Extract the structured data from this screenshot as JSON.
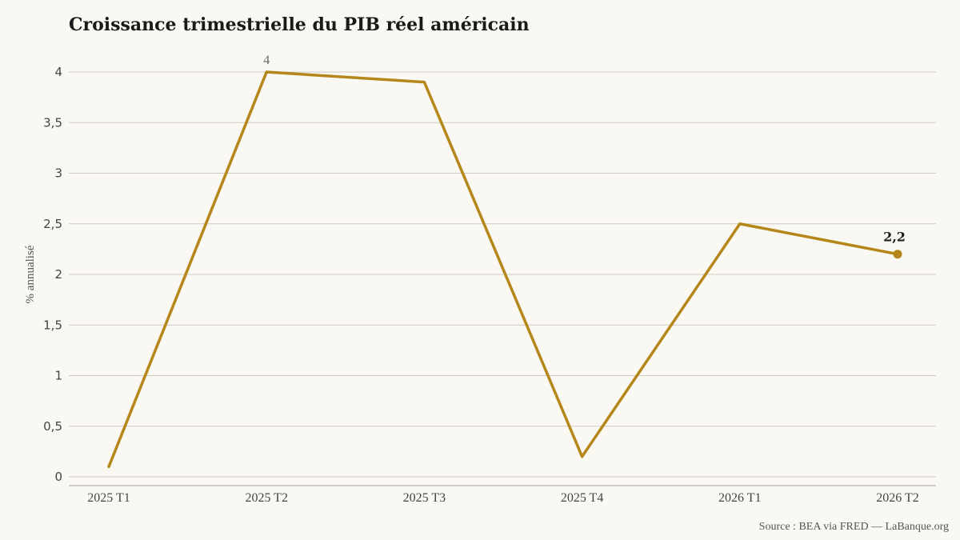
{
  "title": "Croissance trimestrielle du PIB réel américain",
  "source": "Source : BEA via FRED — LaBanque.org",
  "colors": {
    "line": "#b5861a",
    "grid": "#cfcbc2",
    "axis": "#b9b5ac",
    "background": "#faf8f2"
  },
  "chart_data": {
    "type": "line",
    "categories": [
      "2025 T1",
      "2025 T2",
      "2025 T3",
      "2025 T4",
      "2026 T1",
      "2026 T2"
    ],
    "values": [
      0.1,
      4.0,
      3.9,
      0.2,
      2.5,
      2.2
    ],
    "ylabel": "% annualisé",
    "xlabel": "",
    "ylim": [
      0,
      4
    ],
    "yticks": [
      0,
      0.5,
      1,
      1.5,
      2,
      2.5,
      3,
      3.5,
      4
    ],
    "ytick_labels": [
      "0",
      "0,5",
      "1",
      "1,5",
      "2",
      "2,5",
      "3",
      "3,5",
      "4"
    ],
    "grid": true,
    "legend": "none",
    "annotations": [
      {
        "category": "2025 T2",
        "value": 4.0,
        "text": "4",
        "style": "max"
      },
      {
        "category": "2026 T2",
        "value": 2.2,
        "text": "2,2",
        "style": "last"
      }
    ]
  }
}
